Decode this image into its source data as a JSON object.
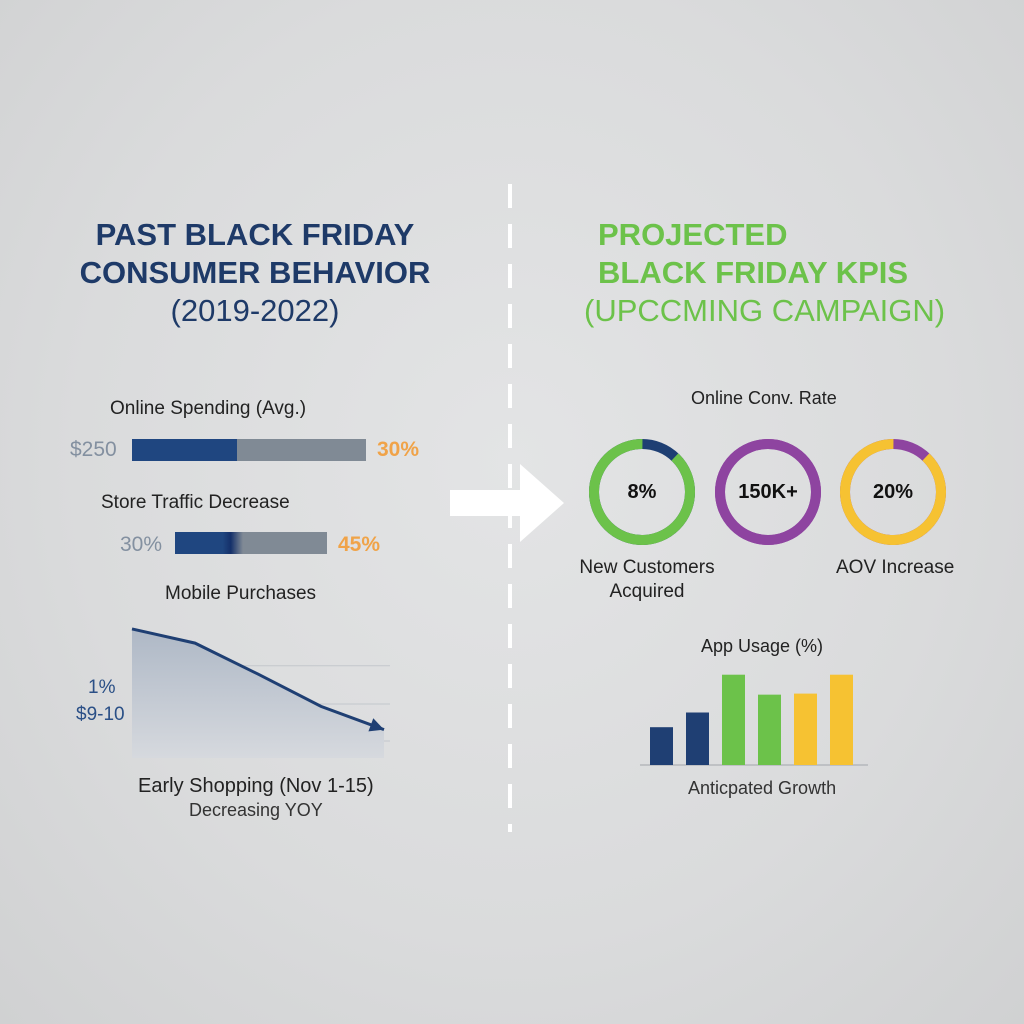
{
  "left": {
    "title_line1": "PAST BLACK FRIDAY",
    "title_line2": "CONSUMER BEHAVIOR",
    "title_line3": "(2019-2022)",
    "online_spending": {
      "label": "Online Spending (Avg.)",
      "left_value": "$250",
      "right_value": "30%",
      "fill_fraction": 0.45
    },
    "store_traffic": {
      "label": "Store Traffic Decrease",
      "left_value": "30%",
      "right_value": "45%",
      "fill_fraction": 0.45
    },
    "mobile": {
      "label": "Mobile Purchases",
      "side_label_1": "1%",
      "side_label_2": "$9-10",
      "caption_1": "Early Shopping (Nov 1-15)",
      "caption_2": "Decreasing YOY"
    }
  },
  "right": {
    "title_line1": "PROJECTED",
    "title_line2": "BLACK FRIDAY KPIS",
    "title_line3": "(UPCCMING CAMPAIGN)",
    "top_label": "Online Conv. Rate",
    "rings": [
      {
        "value": "8%",
        "fraction": 0.88,
        "color": "#6cc24a",
        "rest_color": "#1e3f73"
      },
      {
        "value": "150K+",
        "fraction": 1.0,
        "color": "#8e44a0",
        "rest_color": "#8e44a0"
      },
      {
        "value": "20%",
        "fraction": 0.88,
        "color": "#f6c232",
        "rest_color": "#8e44a0"
      }
    ],
    "ring_caption_1_line1": "New Customers",
    "ring_caption_1_line2": "Acquired",
    "ring_caption_3": "AOV Increase",
    "app_usage_label": "App Usage (%)",
    "app_usage_caption": "Anticpated Growth"
  },
  "chart_data": [
    {
      "type": "line",
      "title": "Mobile Purchases",
      "x": [
        0,
        1,
        2,
        3,
        4
      ],
      "y": [
        100,
        89,
        65,
        40,
        22
      ],
      "ylim": [
        0,
        110
      ]
    },
    {
      "type": "bar",
      "title": "App Usage (%)",
      "categories": [
        "1",
        "2",
        "3",
        "4",
        "5",
        "6"
      ],
      "values": [
        36,
        50,
        86,
        67,
        68,
        86
      ],
      "colors": [
        "#1f3f73",
        "#1f3f73",
        "#6cc24a",
        "#6cc24a",
        "#f6c232",
        "#f6c232"
      ],
      "xlabel": "Anticpated Growth",
      "ylim": [
        0,
        100
      ]
    }
  ]
}
